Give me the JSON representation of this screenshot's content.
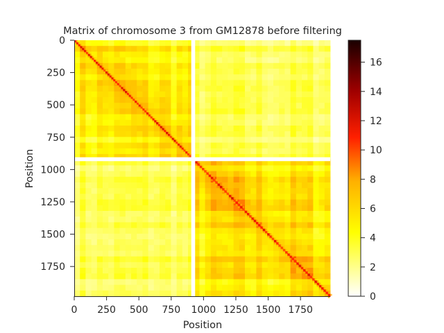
{
  "chart_data": {
    "type": "heatmap",
    "title": "Matrix of chromosome 3 from GM12878 before filtering",
    "xlabel": "Position",
    "ylabel": "Position",
    "matrix_size": 1980,
    "xlim": [
      0,
      1980
    ],
    "ylim": [
      1980,
      0
    ],
    "x_ticks": [
      0,
      250,
      500,
      750,
      1000,
      1250,
      1500,
      1750
    ],
    "y_ticks": [
      0,
      250,
      500,
      750,
      1000,
      1250,
      1500,
      1750
    ],
    "colorbar": {
      "min": 0,
      "max": 17.5,
      "ticks": [
        0,
        2,
        4,
        6,
        8,
        10,
        12,
        14,
        16
      ],
      "colormap": "hot_r",
      "colors": [
        "#ffffff",
        "#ffff00",
        "#ffa500",
        "#ff0000",
        "#8b0000",
        "#1a0000"
      ]
    },
    "filtered_gap": {
      "start": 905,
      "end": 935
    },
    "blocks": [
      {
        "start": 0,
        "end": 905,
        "within_level": 4.6
      },
      {
        "start": 935,
        "end": 1980,
        "within_level": 5.0
      }
    ],
    "between_block_level": 2.8,
    "diagonal_level": 11.0
  }
}
